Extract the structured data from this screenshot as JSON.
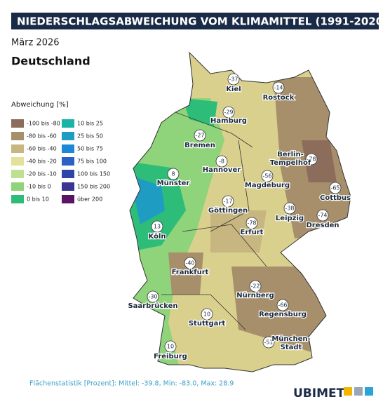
{
  "header": {
    "title": "NIEDERSCHLAGSABWEICHUNG VOM KLIMAMITTEL (1991-2020)",
    "subtitle": "März 2026",
    "region": "Deutschland"
  },
  "legend": {
    "title": "Abweichung [%]",
    "items": [
      {
        "label": "-100 bis -80",
        "color": "#8c6d5c"
      },
      {
        "label": "-80 bis -60",
        "color": "#a68f6a"
      },
      {
        "label": "-60 bis -40",
        "color": "#c7b67f"
      },
      {
        "label": "-40 bis -20",
        "color": "#e3e19a"
      },
      {
        "label": "-20 bis -10",
        "color": "#bfe08e"
      },
      {
        "label": "-10 bis 0",
        "color": "#8fd37a"
      },
      {
        "label": "0 bis 10",
        "color": "#2ebd78"
      },
      {
        "label": "10 bis 25",
        "color": "#1ab3a6"
      },
      {
        "label": "25 bis 50",
        "color": "#1f9cc2"
      },
      {
        "label": "50 bis 75",
        "color": "#1e88d8"
      },
      {
        "label": "75 bis 100",
        "color": "#2a62c4"
      },
      {
        "label": "100 bis 150",
        "color": "#2d45a6"
      },
      {
        "label": "150 bis 200",
        "color": "#3b3592"
      },
      {
        "label": "über 200",
        "color": "#5a1466"
      }
    ]
  },
  "cities": [
    {
      "name": [
        "Kiel"
      ],
      "value": -37
    },
    {
      "name": [
        "Rostock"
      ],
      "value": -14
    },
    {
      "name": [
        "Hamburg"
      ],
      "value": -29
    },
    {
      "name": [
        "Bremen"
      ],
      "value": -27
    },
    {
      "name": [
        "Hannover"
      ],
      "value": -8
    },
    {
      "name": [
        "Berlin-",
        "Tempelhof"
      ],
      "value": -78
    },
    {
      "name": [
        "Münster"
      ],
      "value": 8
    },
    {
      "name": [
        "Magdeburg"
      ],
      "value": -56
    },
    {
      "name": [
        "Cottbus"
      ],
      "value": -65
    },
    {
      "name": [
        "Göttingen"
      ],
      "value": -17
    },
    {
      "name": [
        "Leipzig"
      ],
      "value": -38
    },
    {
      "name": [
        "Dresden"
      ],
      "value": -74
    },
    {
      "name": [
        "Erfurt"
      ],
      "value": -78
    },
    {
      "name": [
        "Köln"
      ],
      "value": 13
    },
    {
      "name": [
        "Frankfurt"
      ],
      "value": -40
    },
    {
      "name": [
        "Saarbrücken"
      ],
      "value": -30
    },
    {
      "name": [
        "Nürnberg"
      ],
      "value": -22
    },
    {
      "name": [
        "Regensburg"
      ],
      "value": -66
    },
    {
      "name": [
        "Stuttgart"
      ],
      "value": 10
    },
    {
      "name": [
        "München-",
        "Stadt"
      ],
      "value": -51
    },
    {
      "name": [
        "Freiburg"
      ],
      "value": 10
    }
  ],
  "footer": {
    "stats": "Flächenstatistik [Prozent]: Mittel: -39.8, Min: -83.0, Max: 28.9",
    "logo": "UBIMET"
  }
}
